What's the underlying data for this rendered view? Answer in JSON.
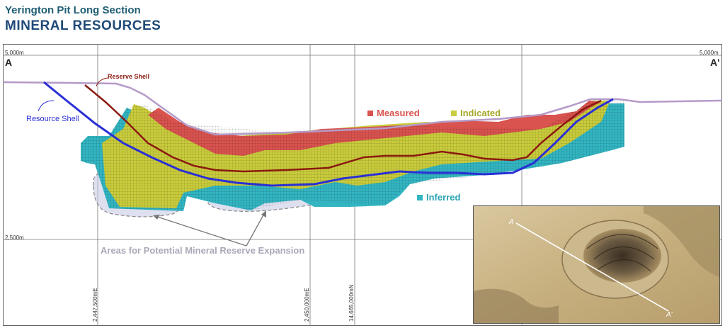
{
  "header": {
    "title": "Yerington Pit Long Section",
    "subtitle": "MINERAL RESOURCES"
  },
  "section": {
    "label_left": "A",
    "label_right": "A'",
    "elev_top_left": "5,000m",
    "elev_top_right": "5,000m",
    "elev_mid_left": "2,500m"
  },
  "coords": {
    "c1": "2,447,500mE",
    "c2": "2,450,000mE",
    "c3": "14,665,000mN"
  },
  "labels": {
    "reserve_shell": "Reserve Shell",
    "resource_shell": "Resource Shell",
    "expansion": "Areas for Potential Mineral Reserve Expansion"
  },
  "legend": {
    "measured": "Measured",
    "indicated": "Indicated",
    "inferred": "Inferred"
  },
  "inset": {
    "label_a": "A",
    "label_a_prime": "A'"
  },
  "colors": {
    "measured": "#d9534f",
    "indicated": "#c9cc3c",
    "inferred": "#33b5c2",
    "reserve_shell": "#8b1a10",
    "resource_shell": "#2a2fd6",
    "topography": "#b49ac8",
    "title": "#1f4a78"
  }
}
